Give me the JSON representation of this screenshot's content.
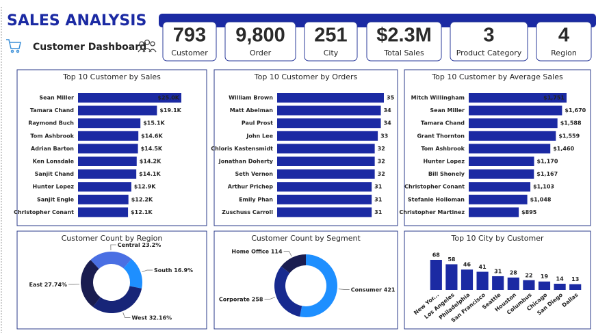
{
  "header": {
    "title": "SALES ANALYSIS",
    "subtitle": "Customer Dashboard"
  },
  "kpis": [
    {
      "value": "793",
      "label": "Customer"
    },
    {
      "value": "9,800",
      "label": "Order"
    },
    {
      "value": "251",
      "label": "City"
    },
    {
      "value": "$2.3M",
      "label": "Total Sales"
    },
    {
      "value": "3",
      "label": "Product Category"
    },
    {
      "value": "4",
      "label": "Region"
    }
  ],
  "chart_data": [
    {
      "type": "bar",
      "orientation": "horizontal",
      "title": "Top 10 Customer by Sales",
      "categories": [
        "Sean Miller",
        "Tamara Chand",
        "Raymond Buch",
        "Tom Ashbrook",
        "Adrian Barton",
        "Ken Lonsdale",
        "Sanjit Chand",
        "Hunter Lopez",
        "Sanjit Engle",
        "Christopher Conant"
      ],
      "values": [
        25000,
        19100,
        15100,
        14600,
        14500,
        14200,
        14100,
        12900,
        12200,
        12100
      ],
      "value_labels": [
        "$25.0K",
        "$19.1K",
        "$15.1K",
        "$14.6K",
        "$14.5K",
        "$14.2K",
        "$14.1K",
        "$12.9K",
        "$12.2K",
        "$12.1K"
      ],
      "color": "#1b2aa3"
    },
    {
      "type": "bar",
      "orientation": "horizontal",
      "title": "Top 10 Customer by Orders",
      "categories": [
        "William Brown",
        "Matt Abelman",
        "Paul Prost",
        "John Lee",
        "Chloris Kastensmidt",
        "Jonathan Doherty",
        "Seth Vernon",
        "Arthur Prichep",
        "Emily Phan",
        "Zuschuss Carroll"
      ],
      "values": [
        35,
        34,
        34,
        33,
        32,
        32,
        32,
        31,
        31,
        31
      ],
      "color": "#1b2aa3"
    },
    {
      "type": "bar",
      "orientation": "horizontal",
      "title": "Top 10 Customer by Average Sales",
      "categories": [
        "Mitch Willingham",
        "Sean Miller",
        "Tamara Chand",
        "Grant Thornton",
        "Tom Ashbrook",
        "Hunter Lopez",
        "Bill Shonely",
        "Christopher Conant",
        "Stefanie Holloman",
        "Christopher Martinez"
      ],
      "values": [
        1751,
        1670,
        1588,
        1559,
        1460,
        1170,
        1167,
        1103,
        1048,
        895
      ],
      "value_labels": [
        "$1,751",
        "$1,670",
        "$1,588",
        "$1,559",
        "$1,460",
        "$1,170",
        "$1,167",
        "$1,103",
        "$1,048",
        "$895"
      ],
      "color": "#1b2aa3"
    },
    {
      "type": "donut",
      "title": "Customer Count by Region",
      "categories": [
        "Central",
        "South",
        "West",
        "East"
      ],
      "values": [
        23.2,
        16.9,
        32.16,
        27.74
      ],
      "value_labels": [
        "23.2%",
        "16.9%",
        "32.16%",
        "27.74%"
      ],
      "colors": [
        "#4a6fe3",
        "#1e8fff",
        "#172578",
        "#1a1d50"
      ]
    },
    {
      "type": "donut",
      "title": "Customer Count by Segment",
      "categories": [
        "Consumer",
        "Corporate",
        "Home Office"
      ],
      "values": [
        421,
        258,
        114
      ],
      "colors": [
        "#1e8fff",
        "#172a8f",
        "#1a1d50"
      ]
    },
    {
      "type": "bar",
      "orientation": "vertical",
      "title": "Top 10 City by Customer",
      "categories": [
        "New Yor...",
        "Los Angeles",
        "Philadelphia",
        "San Francisco",
        "Seattle",
        "Houston",
        "Columbus",
        "Chicago",
        "San Diego",
        "Dallas"
      ],
      "values": [
        68,
        58,
        46,
        41,
        31,
        28,
        22,
        19,
        14,
        13
      ],
      "color": "#1b2aa3"
    }
  ]
}
